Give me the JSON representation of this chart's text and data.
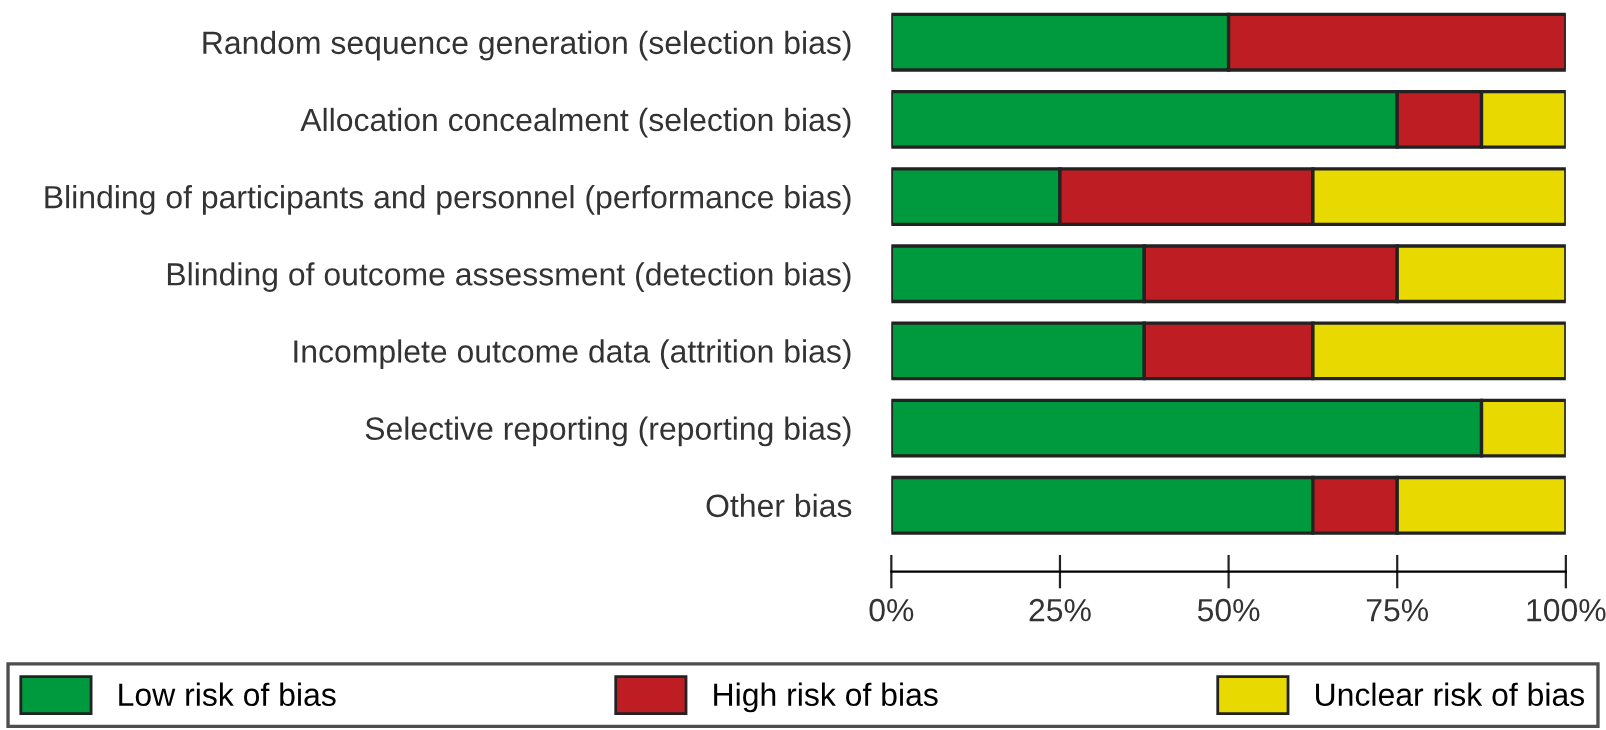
{
  "chart_data": {
    "type": "bar",
    "orientation": "horizontal",
    "stacked": true,
    "categories": [
      "Random sequence generation (selection bias)",
      "Allocation concealment (selection bias)",
      "Blinding of participants and personnel (performance bias)",
      "Blinding of outcome assessment (detection bias)",
      "Incomplete outcome data (attrition bias)",
      "Selective reporting (reporting bias)",
      "Other bias"
    ],
    "series": [
      {
        "name": "Low risk of bias",
        "color": "#009a3e",
        "values": [
          50,
          75,
          25,
          37.5,
          37.5,
          87.5,
          62.5
        ]
      },
      {
        "name": "High risk of bias",
        "color": "#be1e23",
        "values": [
          50,
          12.5,
          37.5,
          37.5,
          25,
          0,
          12.5
        ]
      },
      {
        "name": "Unclear risk of bias",
        "color": "#e8d900",
        "values": [
          0,
          12.5,
          37.5,
          25,
          37.5,
          12.5,
          25
        ]
      }
    ],
    "xlim": [
      0,
      100
    ],
    "xticks": [
      {
        "value": 0,
        "label": "0%"
      },
      {
        "value": 25,
        "label": "25%"
      },
      {
        "value": 50,
        "label": "50%"
      },
      {
        "value": 75,
        "label": "75%"
      },
      {
        "value": 100,
        "label": "100%"
      }
    ],
    "grid": false,
    "legend": "bottom"
  }
}
